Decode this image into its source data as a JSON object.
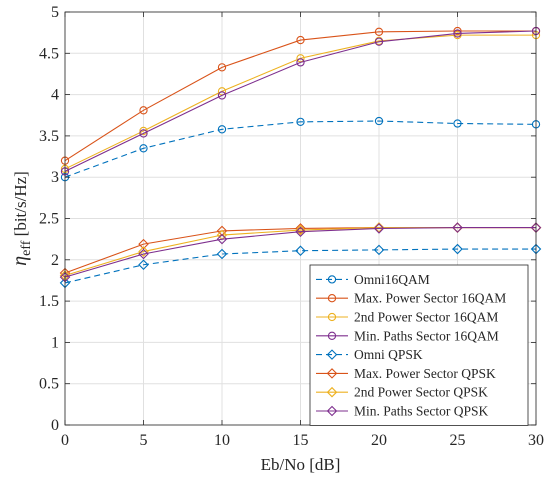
{
  "chart_data": {
    "type": "line",
    "xlabel": "Eb/No [dB]",
    "ylabel": "η",
    "ylabel_sub": "eff",
    "ylabel_unit": " [bit/s/Hz]",
    "xlim": [
      0,
      30
    ],
    "ylim": [
      0,
      5
    ],
    "xticks": [
      0,
      5,
      10,
      15,
      20,
      25,
      30
    ],
    "yticks": [
      0,
      0.5,
      1,
      1.5,
      2,
      2.5,
      3,
      3.5,
      4,
      4.5,
      5
    ],
    "xtick_labels": [
      "0",
      "5",
      "10",
      "15",
      "20",
      "25",
      "30"
    ],
    "ytick_labels": [
      "0",
      "0.5",
      "1",
      "1.5",
      "2",
      "2.5",
      "3",
      "3.5",
      "4",
      "4.5",
      "5"
    ],
    "grid": true,
    "legend_position": "bottom-right",
    "x": [
      0,
      5,
      10,
      15,
      20,
      25,
      30
    ],
    "series": [
      {
        "name": "Omni16QAM",
        "values": [
          3.0,
          3.35,
          3.58,
          3.67,
          3.68,
          3.65,
          3.64
        ],
        "color": "#0072BD",
        "marker": "circle",
        "dash": true
      },
      {
        "name": "Max. Power Sector 16QAM",
        "values": [
          3.2,
          3.81,
          4.33,
          4.66,
          4.76,
          4.77,
          4.77
        ],
        "color": "#D95319",
        "marker": "circle",
        "dash": false
      },
      {
        "name": "2nd Power Sector 16QAM",
        "values": [
          3.1,
          3.56,
          4.04,
          4.44,
          4.65,
          4.72,
          4.72
        ],
        "color": "#EDB120",
        "marker": "circle",
        "dash": false
      },
      {
        "name": "Min. Paths Sector 16QAM",
        "values": [
          3.07,
          3.53,
          3.99,
          4.39,
          4.64,
          4.74,
          4.77
        ],
        "color": "#7E2F8E",
        "marker": "circle",
        "dash": false
      },
      {
        "name": "Omni QPSK",
        "values": [
          1.72,
          1.94,
          2.07,
          2.11,
          2.12,
          2.13,
          2.13
        ],
        "color": "#0072BD",
        "marker": "diamond",
        "dash": true
      },
      {
        "name": "Max. Power Sector QPSK",
        "values": [
          1.84,
          2.19,
          2.35,
          2.38,
          2.39,
          2.39,
          2.39
        ],
        "color": "#D95319",
        "marker": "diamond",
        "dash": false
      },
      {
        "name": "2nd Power Sector QPSK",
        "values": [
          1.81,
          2.1,
          2.3,
          2.36,
          2.39,
          2.39,
          2.39
        ],
        "color": "#EDB120",
        "marker": "diamond",
        "dash": false
      },
      {
        "name": "Min. Paths Sector QPSK",
        "values": [
          1.79,
          2.07,
          2.25,
          2.34,
          2.38,
          2.39,
          2.39
        ],
        "color": "#7E2F8E",
        "marker": "diamond",
        "dash": false
      }
    ]
  }
}
